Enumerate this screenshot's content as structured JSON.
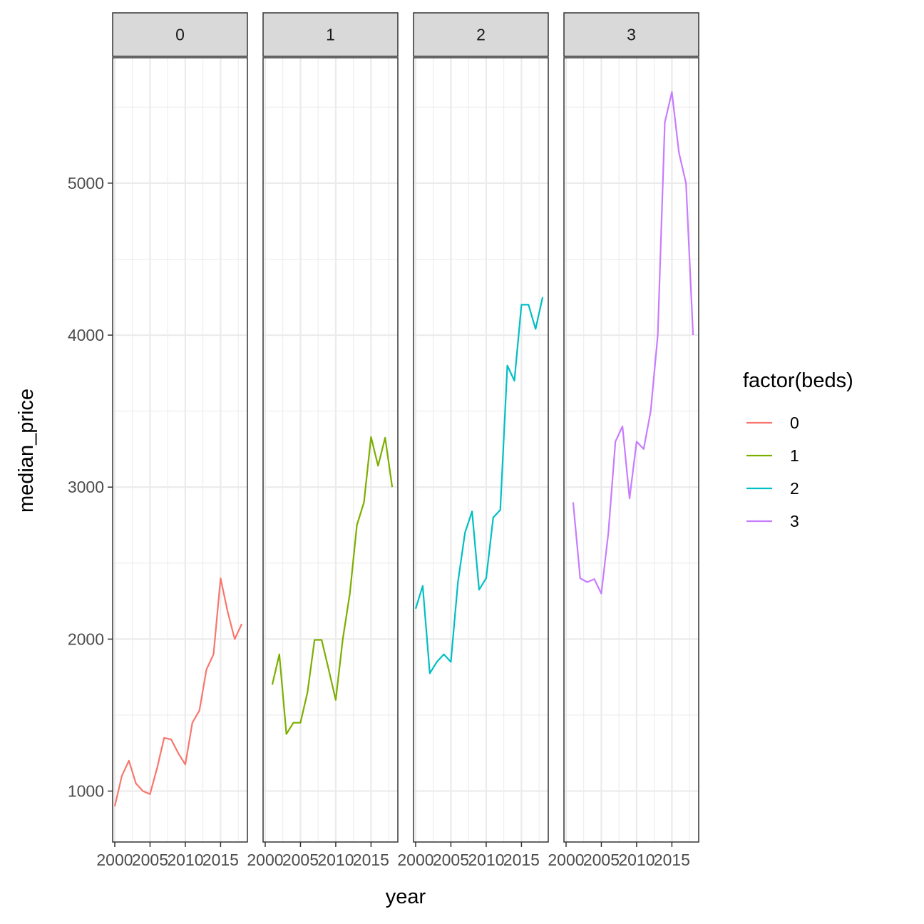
{
  "chart_data": {
    "type": "line",
    "facet_variable": "beds",
    "xlabel": "year",
    "ylabel": "median_price",
    "xlim": [
      1999.7,
      2018.8
    ],
    "ylim": [
      665,
      5825
    ],
    "x_ticks": [
      2000,
      2005,
      2010,
      2015
    ],
    "x_tick_labels": [
      "2000",
      "2005",
      "2010",
      "2015"
    ],
    "y_ticks": [
      1000,
      2000,
      3000,
      4000,
      5000
    ],
    "y_tick_labels": [
      "1000",
      "2000",
      "3000",
      "4000",
      "5000"
    ],
    "grid": true,
    "legend": {
      "title": "factor(beds)",
      "position": "right",
      "entries": [
        "0",
        "1",
        "2",
        "3"
      ]
    },
    "colors": {
      "0": "#F8766D",
      "1": "#7CAE00",
      "2": "#00BFC4",
      "3": "#C77CFF"
    },
    "facets": [
      {
        "label": "0",
        "series": [
          {
            "x": [
              2000,
              2001,
              2002,
              2003,
              2004,
              2005,
              2006,
              2007,
              2008,
              2009,
              2010,
              2011,
              2012,
              2013,
              2014,
              2015,
              2016,
              2017,
              2018
            ],
            "y": [
              900,
              1100,
              1200,
              1050,
              1000,
              980,
              1150,
              1350,
              1340,
              1250,
              1175,
              1450,
              1530,
              1800,
              1900,
              2400,
              2180,
              2000,
              2100
            ]
          }
        ]
      },
      {
        "label": "1",
        "series": [
          {
            "x": [
              2001,
              2002,
              2003,
              2004,
              2005,
              2006,
              2007,
              2008,
              2009,
              2010,
              2011,
              2012,
              2013,
              2014,
              2015,
              2016,
              2017,
              2018
            ],
            "y": [
              1700,
              1900,
              1375,
              1450,
              1450,
              1650,
              1995,
              1995,
              1800,
              1600,
              2000,
              2300,
              2750,
              2900,
              3330,
              3140,
              3325,
              3000
            ]
          }
        ]
      },
      {
        "label": "2",
        "series": [
          {
            "x": [
              2000,
              2001,
              2002,
              2003,
              2004,
              2005,
              2006,
              2007,
              2008,
              2009,
              2010,
              2011,
              2012,
              2013,
              2014,
              2015,
              2016,
              2017,
              2018
            ],
            "y": [
              2200,
              2350,
              1775,
              1850,
              1900,
              1850,
              2375,
              2700,
              2840,
              2325,
              2400,
              2800,
              2850,
              3800,
              3700,
              4200,
              4200,
              4040,
              4250
            ]
          }
        ]
      },
      {
        "label": "3",
        "series": [
          {
            "x": [
              2001,
              2002,
              2003,
              2004,
              2005,
              2006,
              2007,
              2008,
              2009,
              2010,
              2011,
              2012,
              2013,
              2014,
              2015,
              2016,
              2017,
              2018
            ],
            "y": [
              2900,
              2400,
              2375,
              2395,
              2300,
              2700,
              3300,
              3400,
              2925,
              3300,
              3250,
              3500,
              4000,
              5400,
              5600,
              5200,
              5000,
              4000
            ]
          }
        ]
      }
    ]
  }
}
